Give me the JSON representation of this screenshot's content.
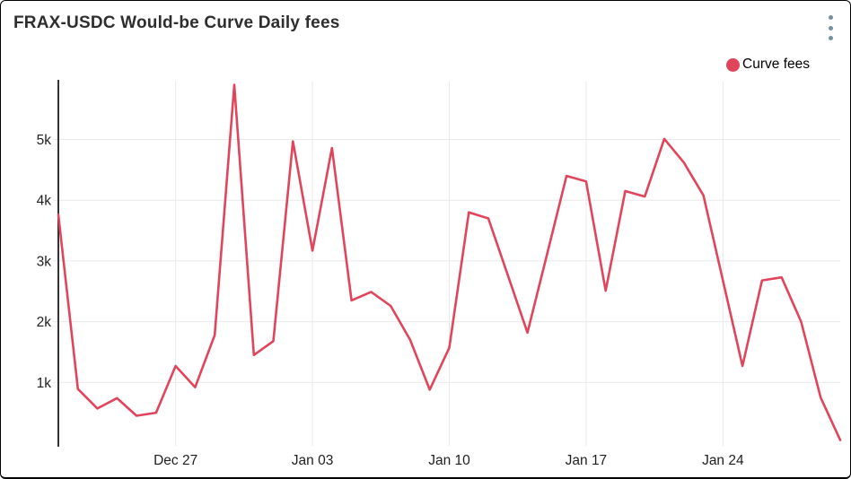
{
  "header": {
    "title": "FRAX-USDC Would-be Curve Daily fees"
  },
  "menu": {
    "icon": "kebab-vertical-dots",
    "color": "#78909c"
  },
  "legend": {
    "position": "top-right",
    "items": [
      {
        "label": "Curve fees",
        "marker": "circle",
        "color": "#e0455c"
      }
    ]
  },
  "chart_data": {
    "type": "line",
    "title": "FRAX-USDC Would-be Curve Daily fees",
    "xlabel": "",
    "ylabel": "",
    "grid": true,
    "legend_position": "top-right",
    "ylim": [
      0,
      5950
    ],
    "x": [
      "Dec 21",
      "Dec 22",
      "Dec 23",
      "Dec 24",
      "Dec 25",
      "Dec 26",
      "Dec 27",
      "Dec 28",
      "Dec 29",
      "Dec 30",
      "Dec 31",
      "Jan 01",
      "Jan 02",
      "Jan 03",
      "Jan 04",
      "Jan 05",
      "Jan 06",
      "Jan 07",
      "Jan 08",
      "Jan 09",
      "Jan 10",
      "Jan 11",
      "Jan 12",
      "Jan 13",
      "Jan 14",
      "Jan 15",
      "Jan 16",
      "Jan 17",
      "Jan 18",
      "Jan 19",
      "Jan 20",
      "Jan 21",
      "Jan 22",
      "Jan 23",
      "Jan 24",
      "Jan 25",
      "Jan 26",
      "Jan 27",
      "Jan 28",
      "Jan 29",
      "Jan 30"
    ],
    "series": [
      {
        "name": "Curve fees",
        "color": "#e0455c",
        "values": [
          3760,
          890,
          570,
          740,
          450,
          500,
          1270,
          920,
          1780,
          5900,
          1450,
          1680,
          4970,
          3170,
          4860,
          2350,
          2490,
          2260,
          1700,
          880,
          1570,
          3800,
          3700,
          2760,
          1820,
          3110,
          4400,
          4310,
          2510,
          4150,
          4060,
          5010,
          4620,
          4080,
          2680,
          1270,
          2680,
          2730,
          2000,
          750,
          50
        ]
      }
    ],
    "x_tick_labels": [
      "Dec 27",
      "Jan 03",
      "Jan 10",
      "Jan 17",
      "Jan 24"
    ],
    "x_tick_indices": [
      6,
      13,
      20,
      27,
      34
    ],
    "y_ticks": [
      1000,
      2000,
      3000,
      4000,
      5000
    ],
    "y_tick_labels": [
      "1k",
      "2k",
      "3k",
      "4k",
      "5k"
    ]
  },
  "colors": {
    "background": "#ffffff",
    "border": "#000000",
    "gridline": "#e9e9e9",
    "axis_line": "#333333",
    "tick_text": "#1f1f1f",
    "title_text": "#2e2e2e",
    "series_line": "#e0455c"
  }
}
